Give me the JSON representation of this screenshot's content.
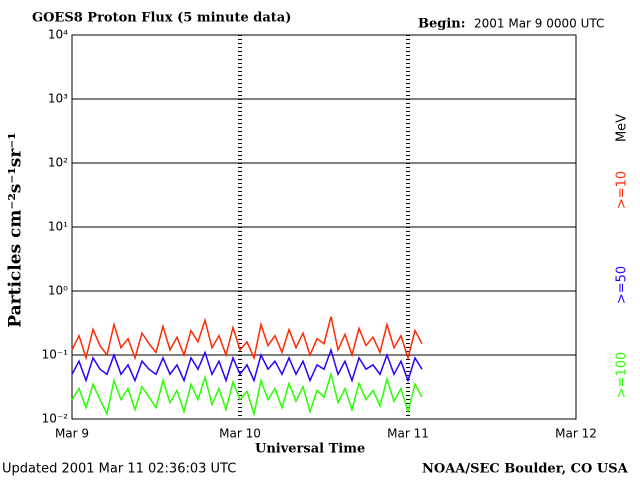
{
  "chart_data": {
    "type": "line",
    "title": "GOES8 Proton Flux (5 minute data)",
    "begin_label": "Begin:",
    "begin": "2001 Mar 9 0000 UTC",
    "y_label": "Particles cm⁻²s⁻¹sr⁻¹",
    "x_label": "Universal Time",
    "updated": "Updated 2001 Mar 11 02:36:03 UTC",
    "source": "NOAA/SEC Boulder, CO USA",
    "unit": "MeV",
    "log_y": true,
    "grid": true,
    "xlim": [
      0,
      72
    ],
    "xticks": [
      {
        "value": 0,
        "label": "Mar 9"
      },
      {
        "value": 24,
        "label": "Mar 10"
      },
      {
        "value": 48,
        "label": "Mar 11"
      },
      {
        "value": 72,
        "label": "Mar 12"
      }
    ],
    "ylim": [
      0.01,
      10000
    ],
    "yticks": [
      {
        "value": 0.01,
        "label": "10⁻²"
      },
      {
        "value": 0.1,
        "label": "10⁻¹"
      },
      {
        "value": 1,
        "label": "10⁰"
      },
      {
        "value": 10,
        "label": "10¹"
      },
      {
        "value": 100,
        "label": "10²"
      },
      {
        "value": 1000,
        "label": "10³"
      },
      {
        "value": 10000,
        "label": "10⁴"
      }
    ],
    "x": [
      0,
      1,
      2,
      3,
      4,
      5,
      6,
      7,
      8,
      9,
      10,
      11,
      12,
      13,
      14,
      15,
      16,
      17,
      18,
      19,
      20,
      21,
      22,
      23,
      24,
      25,
      26,
      27,
      28,
      29,
      30,
      31,
      32,
      33,
      34,
      35,
      36,
      37,
      38,
      39,
      40,
      41,
      42,
      43,
      44,
      45,
      46,
      47,
      48,
      49,
      50
    ],
    "series": [
      {
        "name": ">=10",
        "color": "#ff2a00",
        "values": [
          0.12,
          0.2,
          0.09,
          0.25,
          0.14,
          0.1,
          0.3,
          0.13,
          0.18,
          0.09,
          0.22,
          0.15,
          0.11,
          0.28,
          0.12,
          0.19,
          0.1,
          0.24,
          0.16,
          0.35,
          0.13,
          0.2,
          0.1,
          0.27,
          0.12,
          0.16,
          0.09,
          0.3,
          0.14,
          0.2,
          0.11,
          0.25,
          0.13,
          0.22,
          0.1,
          0.18,
          0.15,
          0.4,
          0.12,
          0.21,
          0.1,
          0.26,
          0.14,
          0.19,
          0.11,
          0.3,
          0.13,
          0.2,
          0.09,
          0.24,
          0.15
        ]
      },
      {
        "name": ">=50",
        "color": "#2a00ff",
        "values": [
          0.05,
          0.08,
          0.04,
          0.09,
          0.06,
          0.05,
          0.1,
          0.05,
          0.07,
          0.04,
          0.08,
          0.06,
          0.05,
          0.09,
          0.05,
          0.07,
          0.04,
          0.09,
          0.06,
          0.11,
          0.05,
          0.08,
          0.04,
          0.09,
          0.05,
          0.07,
          0.04,
          0.1,
          0.06,
          0.08,
          0.05,
          0.09,
          0.05,
          0.08,
          0.04,
          0.07,
          0.06,
          0.12,
          0.05,
          0.08,
          0.04,
          0.09,
          0.06,
          0.07,
          0.05,
          0.1,
          0.05,
          0.08,
          0.04,
          0.09,
          0.06
        ]
      },
      {
        "name": ">=100",
        "color": "#2aff00",
        "values": [
          0.02,
          0.03,
          0.015,
          0.035,
          0.02,
          0.012,
          0.04,
          0.02,
          0.03,
          0.014,
          0.032,
          0.022,
          0.015,
          0.04,
          0.018,
          0.028,
          0.013,
          0.035,
          0.02,
          0.045,
          0.017,
          0.03,
          0.014,
          0.038,
          0.02,
          0.027,
          0.012,
          0.04,
          0.02,
          0.03,
          0.015,
          0.036,
          0.019,
          0.032,
          0.013,
          0.028,
          0.022,
          0.05,
          0.018,
          0.03,
          0.014,
          0.036,
          0.02,
          0.028,
          0.016,
          0.042,
          0.019,
          0.03,
          0.013,
          0.035,
          0.022
        ]
      }
    ]
  }
}
